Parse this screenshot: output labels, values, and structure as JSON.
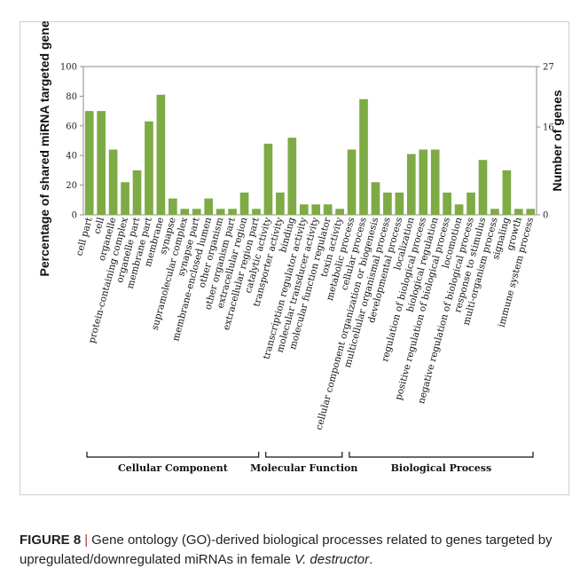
{
  "caption": {
    "label": "FIGURE 8",
    "separator": "|",
    "text_before": "Gene ontology (GO)-derived biological processes related to genes targeted by upregulated/downregulated miRNAs in female ",
    "species": "V. destructor",
    "text_after": "."
  },
  "chart_data": {
    "type": "bar",
    "ylabel": "Percentage of shared miRNA targeted genes",
    "y2label": "Number of genes",
    "ylim": [
      0,
      100
    ],
    "yticks": [
      0,
      20,
      40,
      60,
      80,
      100
    ],
    "y2ticks": [
      0,
      16,
      27
    ],
    "bar_color": "#7eab45",
    "categories": [
      "cell part",
      "cell",
      "organelle",
      "protein-containing complex",
      "organelle part",
      "membrane part",
      "membrane",
      "synapse",
      "supramolecular complex",
      "synapse part",
      "membrane-enclosed lumen",
      "other organism",
      "other organism part",
      "extracellular region",
      "extracellular region part",
      "catalytic activity",
      "transporter activity",
      "binding",
      "transcription regulator activity",
      "molecular transducer activity",
      "molecular function regulator",
      "toxin activity",
      "metabolic process",
      "cellular process",
      "cellular component organization or biogenesis",
      "multicellular organismal process",
      "developmental process",
      "localization",
      "regulation of biological process",
      "biological regulation",
      "positive regulation of biological process",
      "locomotion",
      "negative regulation of biological process",
      "response to stimulus",
      "multi-organism process",
      "signaling",
      "growth",
      "immune system process"
    ],
    "values": [
      70,
      70,
      44,
      22,
      30,
      63,
      81,
      11,
      4,
      4,
      11,
      4,
      4,
      15,
      4,
      48,
      15,
      52,
      7,
      7,
      7,
      4,
      44,
      78,
      22,
      15,
      15,
      41,
      44,
      44,
      15,
      7,
      15,
      37,
      4,
      30,
      4,
      4
    ],
    "groups": [
      {
        "name": "Cellular Component",
        "start": 0,
        "end": 14
      },
      {
        "name": "Molecular Function",
        "start": 15,
        "end": 21
      },
      {
        "name": "Biological Process",
        "start": 22,
        "end": 37
      }
    ]
  }
}
